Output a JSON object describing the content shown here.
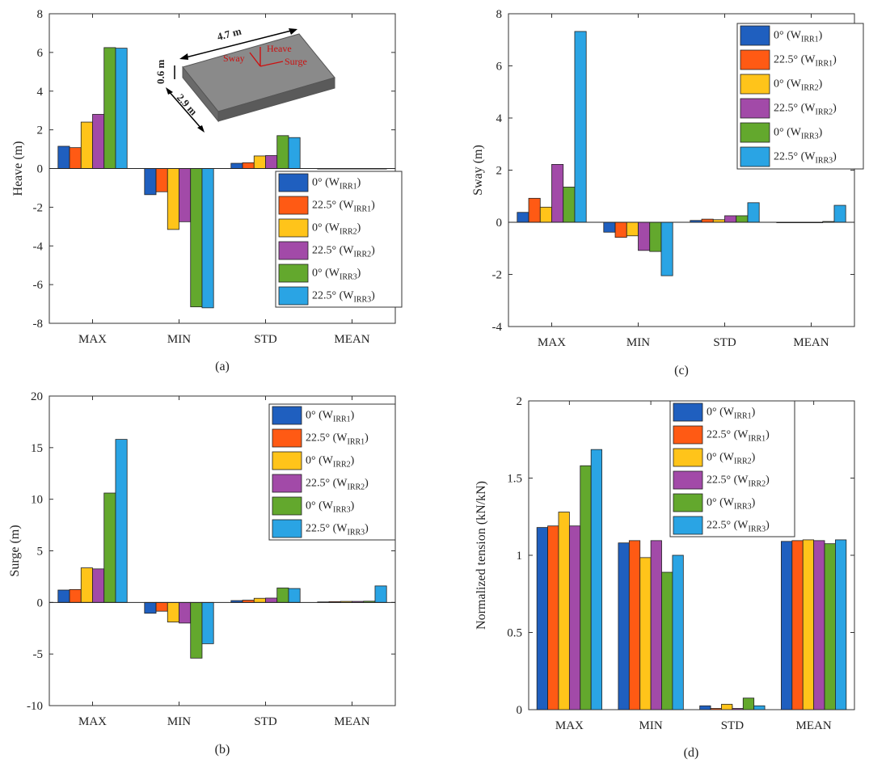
{
  "chart_data": [
    {
      "type": "bar",
      "panel_label": "(a)",
      "ylabel": "Heave (m)",
      "xlabel": "",
      "categories": [
        "MAX",
        "MIN",
        "STD",
        "MEAN"
      ],
      "ylim": [
        -8,
        8
      ],
      "yticks": [
        "-8",
        "-6",
        "-4",
        "-2",
        "0",
        "2",
        "4",
        "6",
        "8"
      ],
      "legend_position": "lower-right",
      "series": [
        {
          "values": [
            1.15,
            -1.35,
            0.27,
            0.0
          ]
        },
        {
          "values": [
            1.08,
            -1.2,
            0.3,
            0.0
          ]
        },
        {
          "values": [
            2.4,
            -3.15,
            0.65,
            0.0
          ]
        },
        {
          "values": [
            2.8,
            -2.75,
            0.67,
            0.0
          ]
        },
        {
          "values": [
            6.25,
            -7.15,
            1.7,
            0.0
          ]
        },
        {
          "values": [
            6.22,
            -7.2,
            1.6,
            0.0
          ]
        }
      ],
      "inset": {
        "length": "4.7 m",
        "height": "0.6 m",
        "width": "2.9 m",
        "heave": "Heave",
        "sway": "Sway",
        "surge": "Surge"
      }
    },
    {
      "type": "bar",
      "panel_label": "(b)",
      "ylabel": "Surge (m)",
      "xlabel": "",
      "categories": [
        "MAX",
        "MIN",
        "STD",
        "MEAN"
      ],
      "ylim": [
        -10,
        20
      ],
      "yticks": [
        "-10",
        "-5",
        "0",
        "5",
        "10",
        "15",
        "20"
      ],
      "legend_position": "top-right",
      "series": [
        {
          "values": [
            1.2,
            -1.05,
            0.18,
            0.05
          ]
        },
        {
          "values": [
            1.25,
            -0.85,
            0.22,
            0.08
          ]
        },
        {
          "values": [
            3.35,
            -1.9,
            0.4,
            0.1
          ]
        },
        {
          "values": [
            3.25,
            -2.0,
            0.42,
            0.1
          ]
        },
        {
          "values": [
            10.6,
            -5.4,
            1.4,
            0.12
          ]
        },
        {
          "values": [
            15.8,
            -4.0,
            1.35,
            1.6
          ]
        }
      ]
    },
    {
      "type": "bar",
      "panel_label": "(c)",
      "ylabel": "Sway (m)",
      "xlabel": "",
      "categories": [
        "MAX",
        "MIN",
        "STD",
        "MEAN"
      ],
      "ylim": [
        -4,
        8
      ],
      "yticks": [
        "-4",
        "-2",
        "0",
        "2",
        "4",
        "6",
        "8"
      ],
      "legend_position": "top-right",
      "series": [
        {
          "values": [
            0.38,
            -0.38,
            0.07,
            0.0
          ]
        },
        {
          "values": [
            0.92,
            -0.58,
            0.12,
            0.0
          ]
        },
        {
          "values": [
            0.58,
            -0.52,
            0.1,
            0.0
          ]
        },
        {
          "values": [
            2.22,
            -1.08,
            0.25,
            0.0
          ]
        },
        {
          "values": [
            1.35,
            -1.12,
            0.25,
            0.03
          ]
        },
        {
          "values": [
            7.32,
            -2.05,
            0.75,
            0.65
          ]
        }
      ]
    },
    {
      "type": "bar",
      "panel_label": "(d)",
      "ylabel": "Normalized tension (kN/kN)",
      "xlabel": "",
      "categories": [
        "MAX",
        "MIN",
        "STD",
        "MEAN"
      ],
      "ylim": [
        0,
        2
      ],
      "yticks": [
        "0",
        "0.5",
        "1",
        "1.5",
        "2"
      ],
      "legend_position": "top-center",
      "series": [
        {
          "values": [
            1.18,
            1.08,
            0.025,
            1.09
          ]
        },
        {
          "values": [
            1.19,
            1.095,
            0.008,
            1.095
          ]
        },
        {
          "values": [
            1.28,
            0.985,
            0.035,
            1.1
          ]
        },
        {
          "values": [
            1.19,
            1.095,
            0.008,
            1.095
          ]
        },
        {
          "values": [
            1.58,
            0.89,
            0.075,
            1.075
          ]
        },
        {
          "values": [
            1.685,
            1.0,
            0.025,
            1.1
          ]
        }
      ]
    }
  ],
  "legend": {
    "entries": [
      {
        "main": "0° (W",
        "sub": "IRR1",
        "close": ")"
      },
      {
        "main": "22.5° (W",
        "sub": "IRR1",
        "close": ")"
      },
      {
        "main": "0° (W",
        "sub": "IRR2",
        "close": ")"
      },
      {
        "main": "22.5° (W",
        "sub": "IRR2",
        "close": ")"
      },
      {
        "main": "0° (W",
        "sub": "IRR3",
        "close": ")"
      },
      {
        "main": "22.5° (W",
        "sub": "IRR3",
        "close": ")"
      }
    ]
  },
  "colors": [
    "#1f5fbf",
    "#ff5a14",
    "#ffc41a",
    "#a24aa8",
    "#63a82d",
    "#2aa4e4"
  ]
}
